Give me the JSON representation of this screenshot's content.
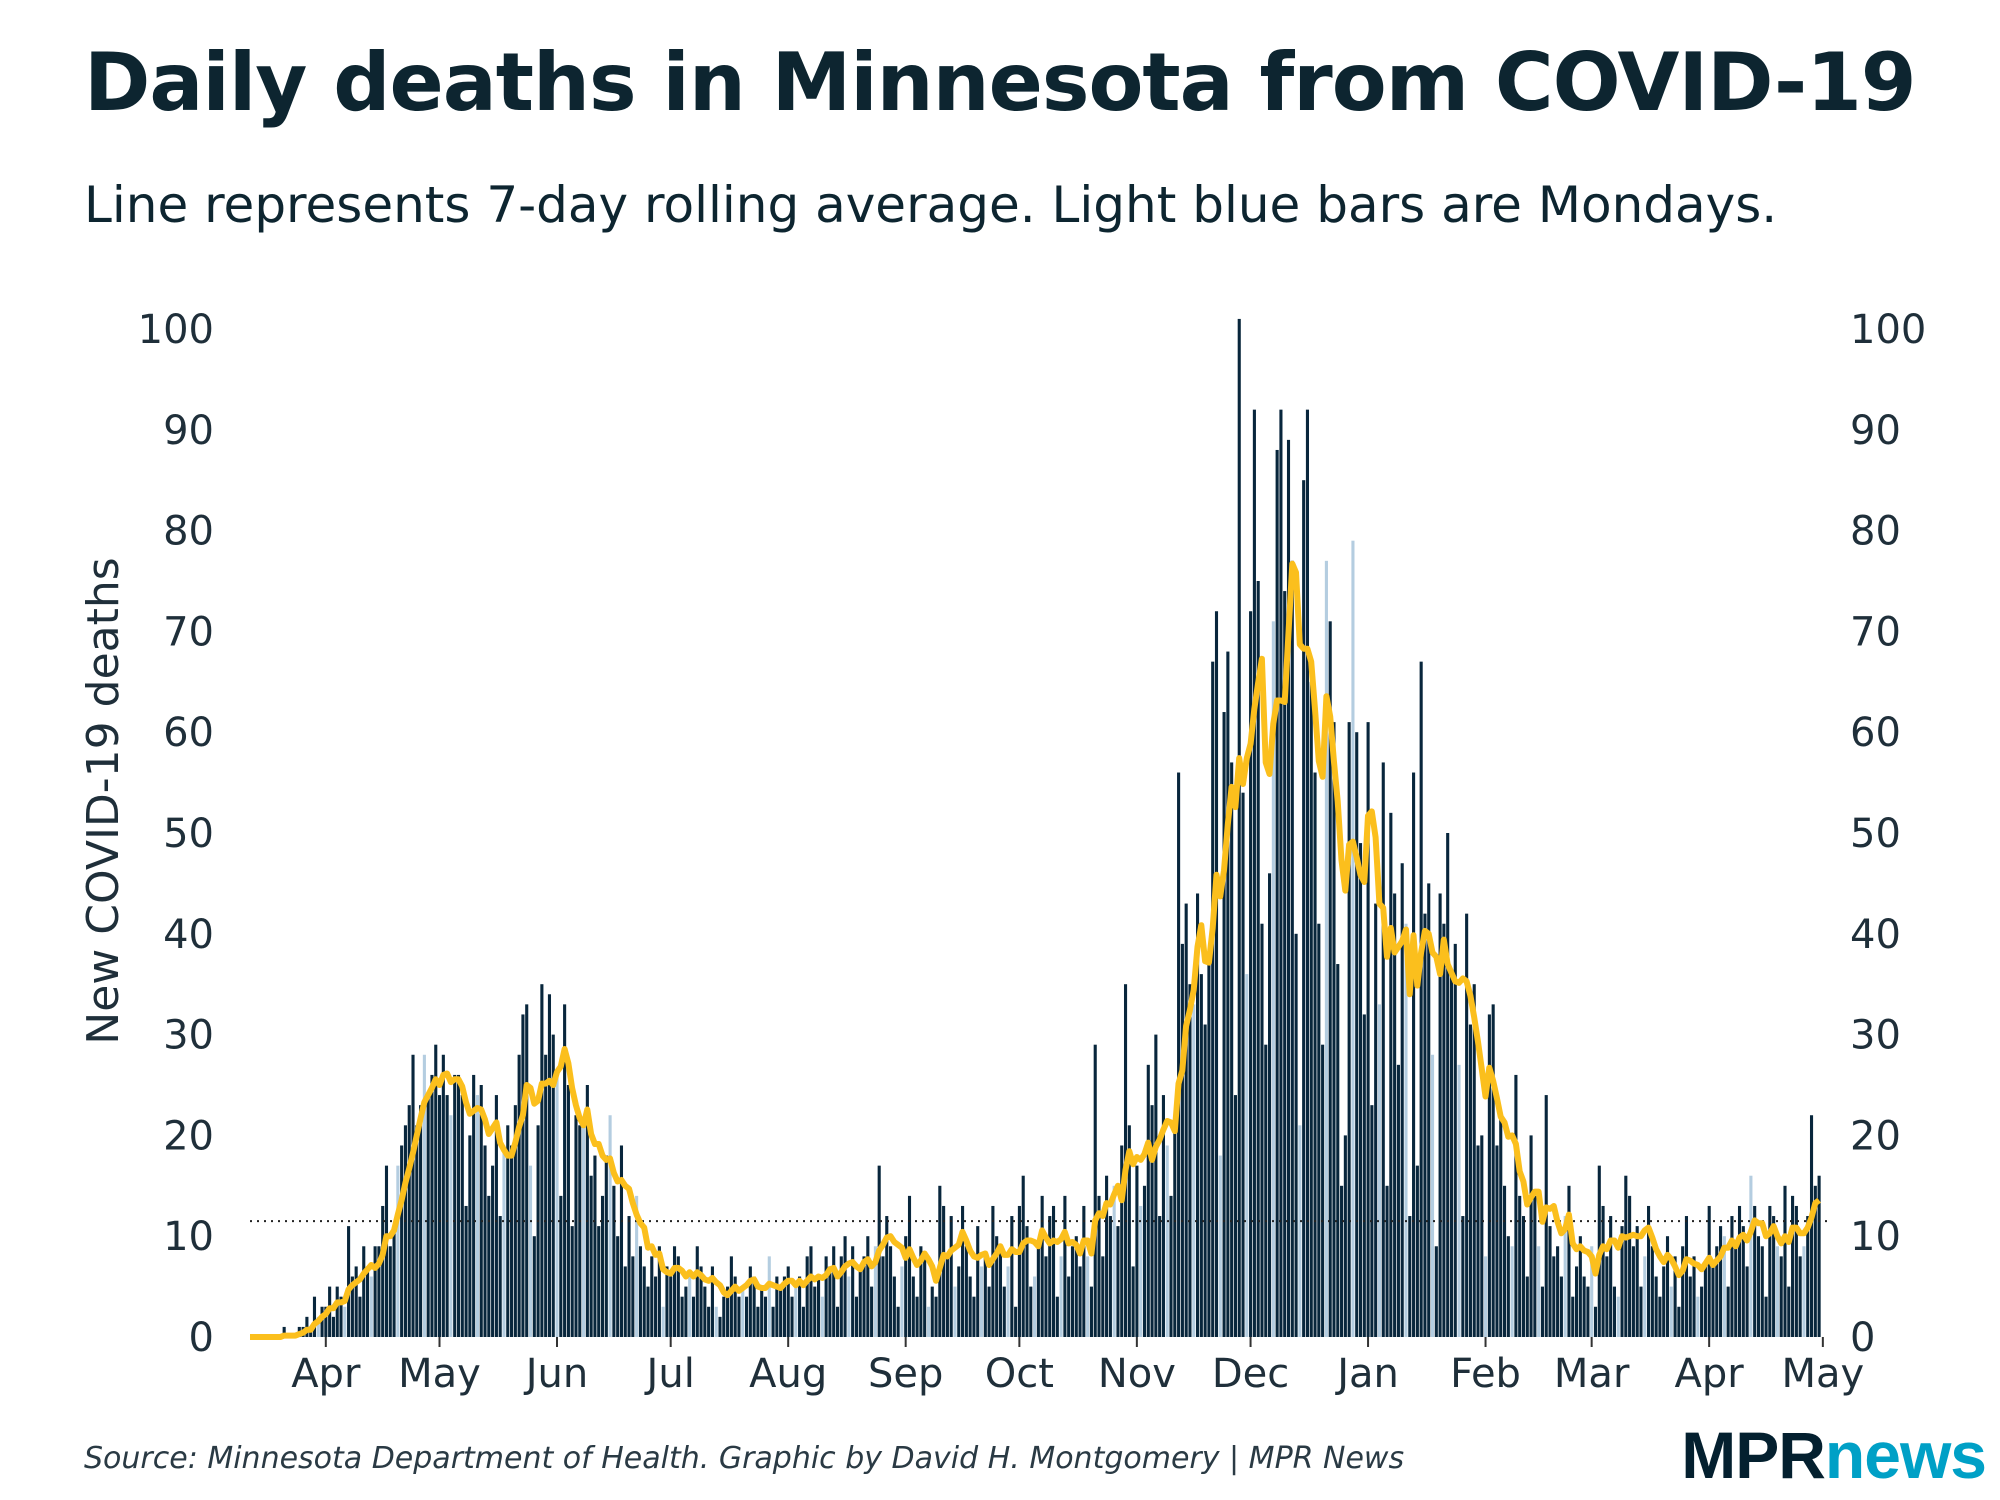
{
  "chart_data": {
    "type": "bar",
    "title": "Daily deaths in Minnesota from COVID-19",
    "subtitle": "Line represents 7-day rolling average. Light blue bars are Mondays.",
    "ylabel": "New COVID-19 deaths",
    "ylim": [
      0,
      100
    ],
    "yticks": [
      0,
      10,
      20,
      30,
      40,
      50,
      60,
      70,
      80,
      90,
      100
    ],
    "start_date": "2020-03-12",
    "end_date": "2021-04-30",
    "xticks": [
      {
        "label": "Apr",
        "date": "2020-04-01"
      },
      {
        "label": "May",
        "date": "2020-05-01"
      },
      {
        "label": "Jun",
        "date": "2020-06-01"
      },
      {
        "label": "Jul",
        "date": "2020-07-01"
      },
      {
        "label": "Aug",
        "date": "2020-08-01"
      },
      {
        "label": "Sep",
        "date": "2020-09-01"
      },
      {
        "label": "Oct",
        "date": "2020-10-01"
      },
      {
        "label": "Nov",
        "date": "2020-11-01"
      },
      {
        "label": "Dec",
        "date": "2020-12-01"
      },
      {
        "label": "Jan",
        "date": "2021-01-01"
      },
      {
        "label": "Feb",
        "date": "2021-02-01"
      },
      {
        "label": "Mar",
        "date": "2021-03-01"
      },
      {
        "label": "Apr",
        "date": "2021-04-01"
      },
      {
        "label": "May",
        "date": "2021-05-01"
      }
    ],
    "reference_line": 11.5,
    "series": [
      {
        "type": "bar",
        "values": [
          0,
          0,
          0,
          0,
          0,
          0,
          0,
          0,
          0,
          1,
          0,
          0,
          0,
          1,
          1,
          2,
          1,
          4,
          2,
          3,
          3,
          5,
          2,
          5,
          4,
          3,
          11,
          6,
          7,
          4,
          9,
          7,
          6,
          9,
          9,
          13,
          17,
          9,
          11,
          17,
          19,
          21,
          23,
          28,
          21,
          23,
          28,
          24,
          26,
          29,
          24,
          28,
          24,
          22,
          26,
          26,
          24,
          13,
          20,
          26,
          24,
          25,
          19,
          14,
          17,
          24,
          12,
          19,
          21,
          19,
          23,
          28,
          32,
          33,
          17,
          10,
          21,
          35,
          28,
          34,
          30,
          26,
          14,
          33,
          25,
          11,
          22,
          21,
          21,
          25,
          16,
          18,
          11,
          14,
          18,
          22,
          15,
          10,
          19,
          7,
          12,
          8,
          14,
          9,
          7,
          5,
          8,
          6,
          9,
          3,
          7,
          6,
          9,
          8,
          4,
          5,
          6,
          4,
          9,
          7,
          5,
          3,
          7,
          3,
          2,
          4,
          5,
          8,
          6,
          4,
          5,
          4,
          7,
          6,
          3,
          5,
          4,
          8,
          3,
          6,
          5,
          6,
          7,
          4,
          5,
          6,
          3,
          8,
          9,
          5,
          6,
          4,
          8,
          7,
          9,
          3,
          8,
          10,
          6,
          9,
          4,
          7,
          8,
          10,
          5,
          9,
          17,
          8,
          12,
          9,
          6,
          3,
          7,
          10,
          14,
          6,
          4,
          9,
          8,
          3,
          5,
          4,
          15,
          13,
          8,
          12,
          5,
          7,
          13,
          9,
          6,
          4,
          11,
          7,
          8,
          5,
          13,
          10,
          9,
          5,
          7,
          12,
          3,
          13,
          16,
          11,
          5,
          6,
          9,
          14,
          8,
          12,
          13,
          4,
          8,
          14,
          6,
          9,
          10,
          7,
          13,
          8,
          5,
          29,
          14,
          8,
          16,
          12,
          15,
          11,
          19,
          35,
          21,
          7,
          17,
          13,
          15,
          27,
          23,
          30,
          12,
          24,
          19,
          14,
          21,
          56,
          39,
          43,
          35,
          33,
          44,
          36,
          31,
          38,
          67,
          72,
          18,
          62,
          68,
          57,
          24,
          101,
          54,
          36,
          72,
          92,
          75,
          41,
          29,
          46,
          71,
          88,
          92,
          74,
          89,
          77,
          40,
          21,
          85,
          92,
          65,
          56,
          41,
          29,
          77,
          71,
          61,
          37,
          15,
          20,
          61,
          79,
          60,
          49,
          32,
          61,
          23,
          43,
          33,
          57,
          15,
          52,
          44,
          27,
          47,
          41,
          12,
          56,
          17,
          67,
          42,
          45,
          28,
          9,
          44,
          41,
          50,
          36,
          39,
          27,
          12,
          42,
          31,
          35,
          19,
          20,
          8,
          32,
          33,
          19,
          22,
          15,
          10,
          9,
          26,
          14,
          12,
          6,
          20,
          14,
          9,
          5,
          24,
          11,
          8,
          9,
          6,
          12,
          15,
          4,
          7,
          10,
          6,
          5,
          9,
          3,
          17,
          13,
          8,
          12,
          5,
          4,
          11,
          16,
          14,
          9,
          11,
          5,
          8,
          13,
          9,
          6,
          4,
          7,
          10,
          5,
          8,
          3,
          9,
          12,
          6,
          8,
          4,
          5,
          7,
          13,
          7,
          9,
          11,
          10,
          5,
          12,
          9,
          13,
          11,
          7,
          16,
          13,
          10,
          9,
          4,
          13,
          12,
          9,
          8,
          15,
          5,
          14,
          13,
          8,
          9,
          12,
          22,
          15,
          16
        ]
      },
      {
        "type": "line",
        "name": "7-day rolling average"
      }
    ],
    "colors": {
      "bar": "#08263c",
      "monday_bar": "#b4cde0",
      "line": "#fbbf1d",
      "reference": "#222222"
    },
    "grid": false,
    "legend": "none"
  },
  "footer": {
    "source": "Source: Minnesota Department of Health. Graphic by David H. Montgomery | MPR News",
    "logo": {
      "part1": "MPR",
      "part2": "news"
    }
  }
}
